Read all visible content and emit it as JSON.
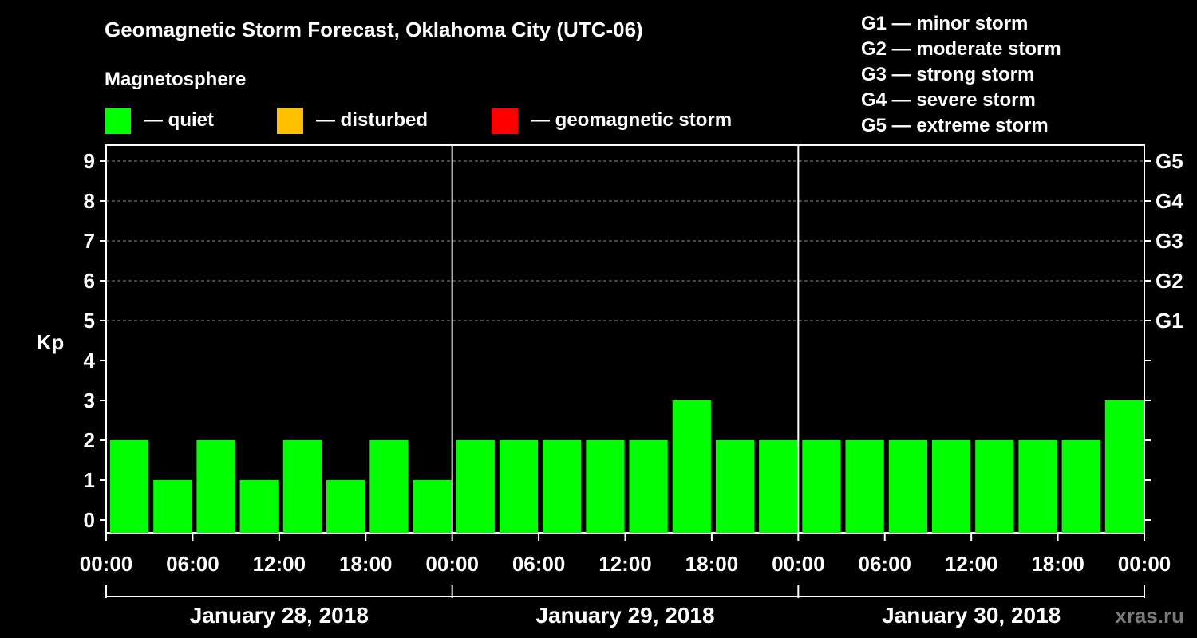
{
  "header": {
    "title": "Geomagnetic Storm Forecast, Oklahoma City (UTC-06)",
    "subtitle": "Magnetosphere"
  },
  "legend": [
    {
      "label": "— quiet",
      "color": "#00ff00"
    },
    {
      "label": "— disturbed",
      "color": "#ffc000"
    },
    {
      "label": "— geomagnetic storm",
      "color": "#ff0000"
    }
  ],
  "storm_levels": [
    "G1 — minor storm",
    "G2 — moderate storm",
    "G3 — strong storm",
    "G4 — severe storm",
    "G5 — extreme storm"
  ],
  "watermark": "xras.ru",
  "chart_data": {
    "type": "bar",
    "ylabel": "Kp",
    "ylim": [
      0,
      9
    ],
    "yticks": [
      0,
      1,
      2,
      3,
      4,
      5,
      6,
      7,
      8,
      9
    ],
    "right_ticks": [
      {
        "kp": 5,
        "label": "G1"
      },
      {
        "kp": 6,
        "label": "G2"
      },
      {
        "kp": 7,
        "label": "G3"
      },
      {
        "kp": 8,
        "label": "G4"
      },
      {
        "kp": 9,
        "label": "G5"
      }
    ],
    "grid": "dashed horizontal at Kp 5-9",
    "x_tick_labels": [
      "00:00",
      "06:00",
      "12:00",
      "18:00",
      "00:00",
      "06:00",
      "12:00",
      "18:00",
      "00:00",
      "06:00",
      "12:00",
      "18:00",
      "00:00"
    ],
    "days": [
      "January 28, 2018",
      "January 29, 2018",
      "January 30, 2018"
    ],
    "bar_color": "#00ff00",
    "values": [
      2,
      1,
      2,
      1,
      2,
      1,
      2,
      1,
      2,
      2,
      2,
      2,
      2,
      3,
      2,
      2,
      2,
      2,
      2,
      2,
      2,
      2,
      2,
      3
    ]
  }
}
